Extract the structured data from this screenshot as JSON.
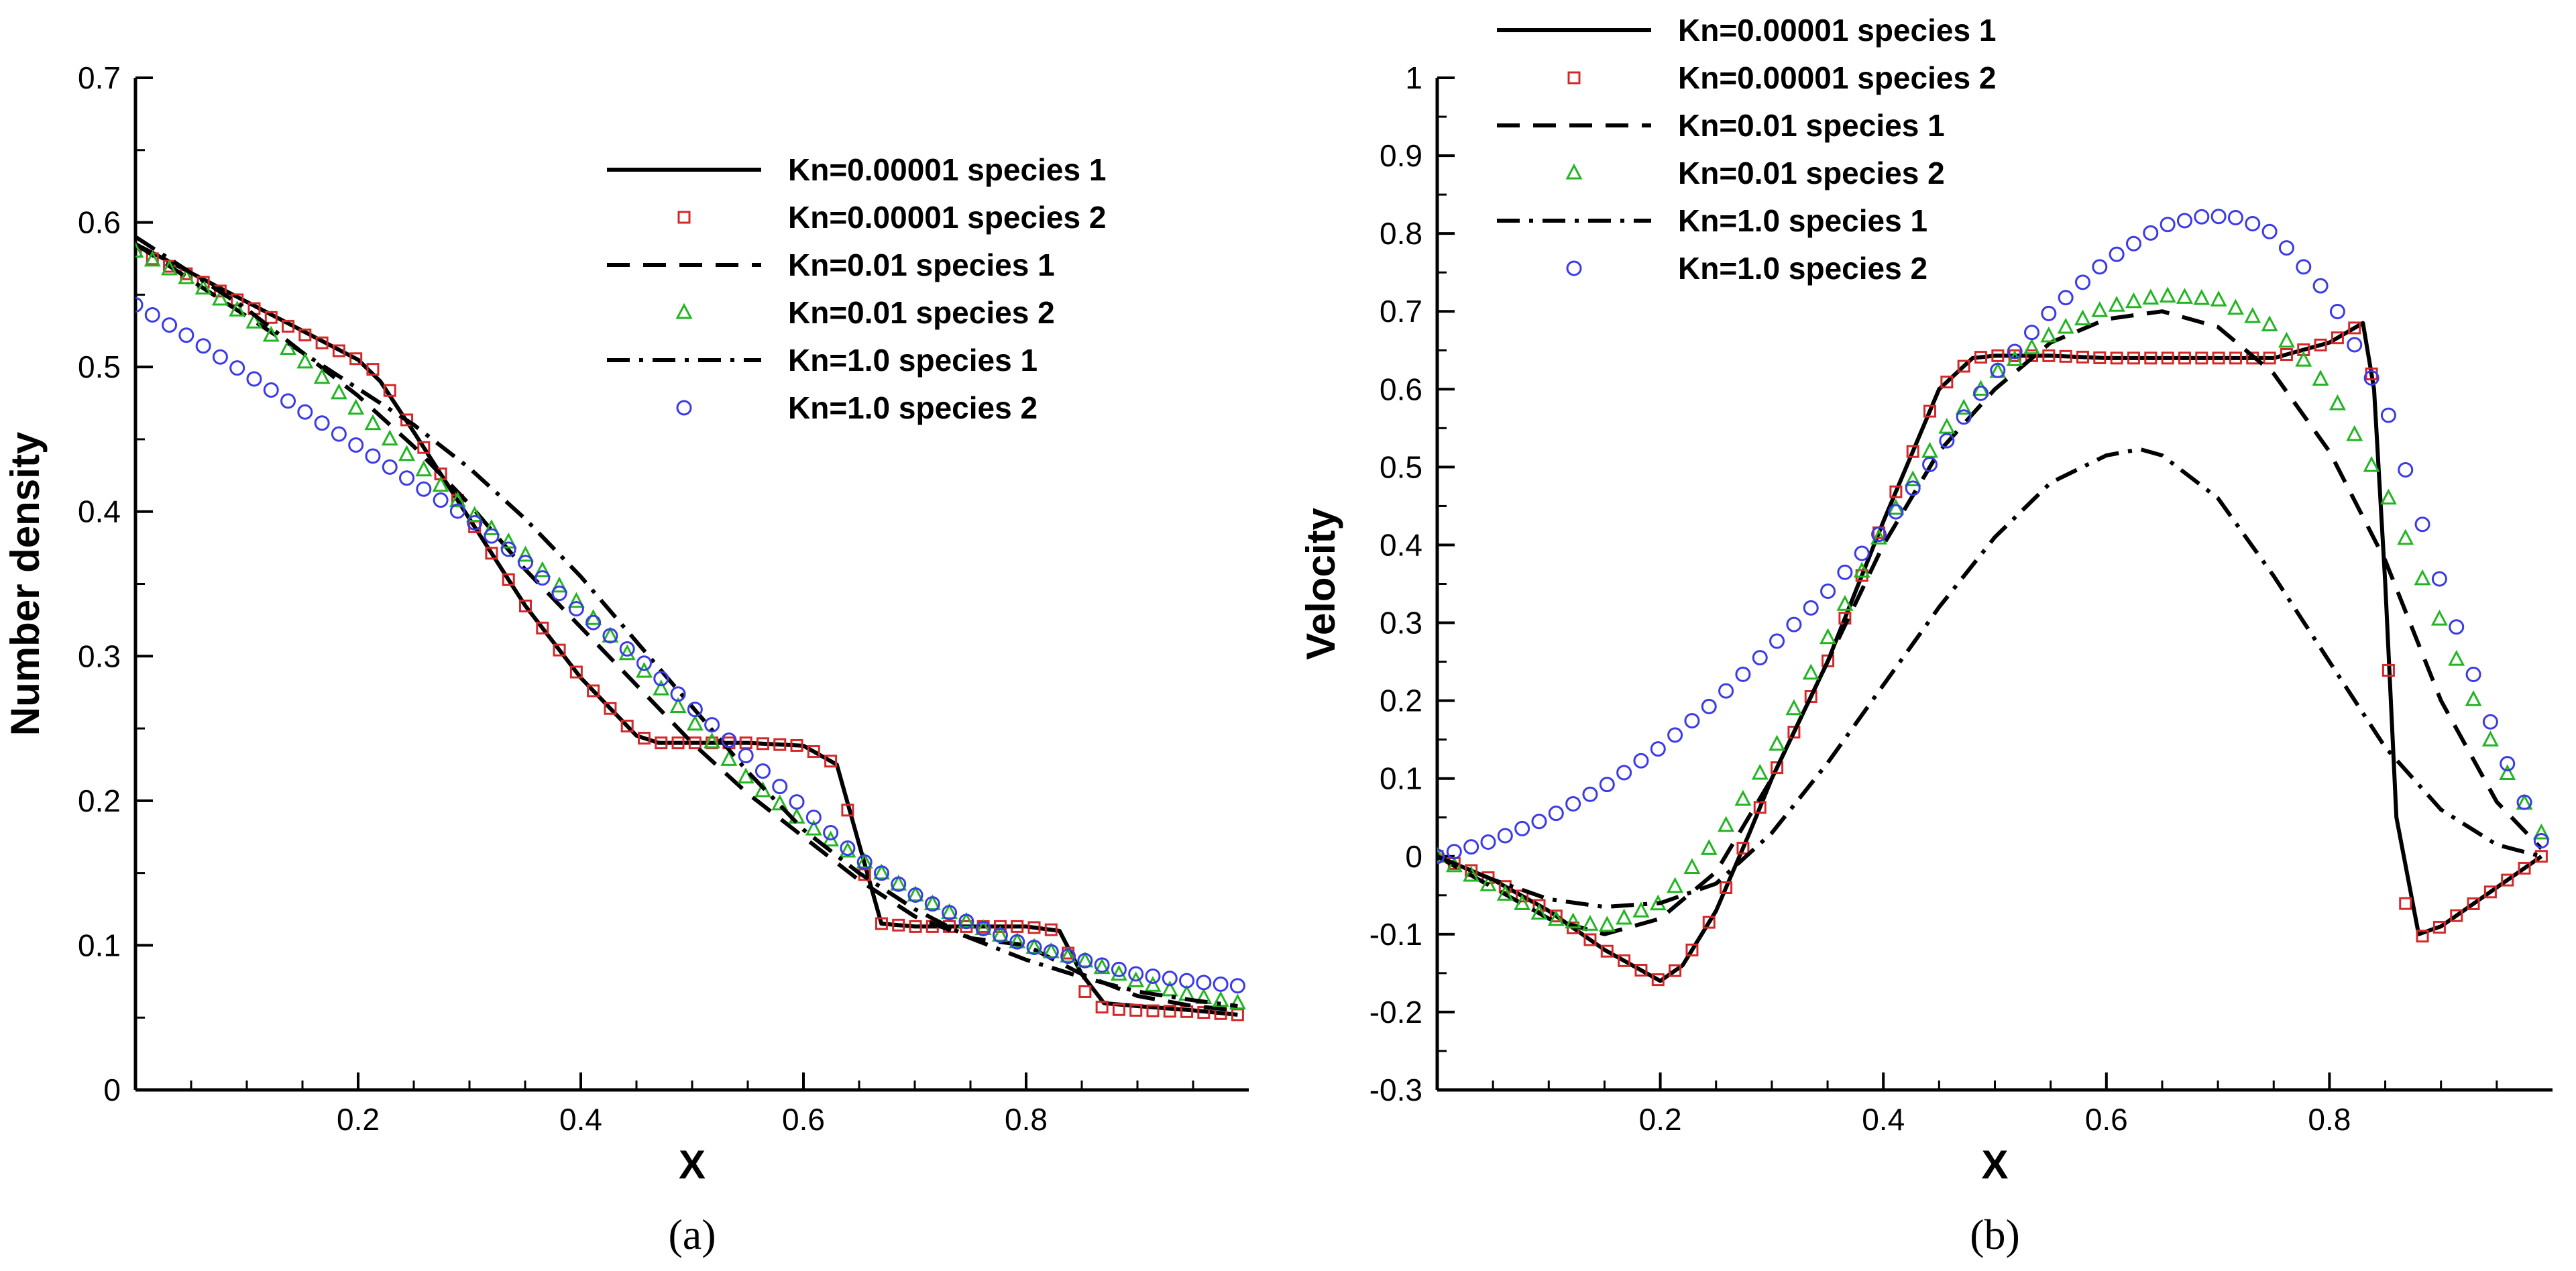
{
  "colors": {
    "red": "#d62728",
    "green": "#22b522",
    "blue": "#3a3ae8",
    "black": "#000000"
  },
  "chart_data": [
    {
      "type": "line",
      "caption": "(a)",
      "xlabel": "X",
      "ylabel": "Number density",
      "xlim": [
        0,
        1
      ],
      "ylim": [
        0,
        0.7
      ],
      "x_ticks": [
        0.2,
        0.4,
        0.6,
        0.8
      ],
      "x_tick_labels": [
        "0.2",
        "0.4",
        "0.6",
        "0.8"
      ],
      "y_ticks": [
        0,
        0.1,
        0.2,
        0.3,
        0.4,
        0.5,
        0.6,
        0.7
      ],
      "y_tick_labels": [
        "0",
        "0.1",
        "0.2",
        "0.3",
        "0.4",
        "0.5",
        "0.6",
        "0.7"
      ],
      "legend_position": "top-right",
      "series": [
        {
          "name": "Kn=0.00001 species 1",
          "style": "solid",
          "x": [
            0,
            0.05,
            0.1,
            0.15,
            0.2,
            0.22,
            0.25,
            0.3,
            0.35,
            0.4,
            0.45,
            0.47,
            0.5,
            0.55,
            0.6,
            0.63,
            0.65,
            0.67,
            0.7,
            0.75,
            0.8,
            0.83,
            0.85,
            0.87,
            0.9,
            0.95,
            0.99
          ],
          "y": [
            0.585,
            0.565,
            0.545,
            0.525,
            0.505,
            0.49,
            0.455,
            0.395,
            0.335,
            0.285,
            0.245,
            0.24,
            0.24,
            0.24,
            0.238,
            0.225,
            0.17,
            0.115,
            0.113,
            0.113,
            0.113,
            0.11,
            0.08,
            0.06,
            0.058,
            0.055,
            0.052
          ]
        },
        {
          "name": "Kn=0.00001 species 2",
          "style": "square",
          "x": [
            0,
            0.05,
            0.1,
            0.15,
            0.2,
            0.22,
            0.25,
            0.3,
            0.35,
            0.4,
            0.45,
            0.47,
            0.5,
            0.55,
            0.6,
            0.63,
            0.65,
            0.67,
            0.7,
            0.75,
            0.8,
            0.83,
            0.85,
            0.87,
            0.9,
            0.95,
            0.99
          ],
          "y": [
            0.58,
            0.563,
            0.543,
            0.523,
            0.505,
            0.495,
            0.455,
            0.395,
            0.335,
            0.285,
            0.245,
            0.24,
            0.24,
            0.24,
            0.238,
            0.225,
            0.16,
            0.115,
            0.113,
            0.113,
            0.113,
            0.11,
            0.07,
            0.056,
            0.055,
            0.054,
            0.052
          ]
        },
        {
          "name": "Kn=0.01 species 1",
          "style": "dash",
          "x": [
            0,
            0.05,
            0.1,
            0.15,
            0.2,
            0.25,
            0.3,
            0.35,
            0.4,
            0.45,
            0.5,
            0.55,
            0.6,
            0.65,
            0.7,
            0.75,
            0.8,
            0.85,
            0.9,
            0.95,
            0.99
          ],
          "y": [
            0.585,
            0.56,
            0.535,
            0.51,
            0.48,
            0.445,
            0.405,
            0.36,
            0.32,
            0.28,
            0.24,
            0.205,
            0.175,
            0.145,
            0.12,
            0.105,
            0.1,
            0.08,
            0.065,
            0.058,
            0.055
          ]
        },
        {
          "name": "Kn=0.01 species 2",
          "style": "triangle",
          "x": [
            0,
            0.05,
            0.1,
            0.15,
            0.2,
            0.25,
            0.3,
            0.35,
            0.4,
            0.45,
            0.5,
            0.55,
            0.6,
            0.65,
            0.7,
            0.75,
            0.8,
            0.85,
            0.9,
            0.95,
            0.99
          ],
          "y": [
            0.58,
            0.56,
            0.535,
            0.505,
            0.47,
            0.435,
            0.4,
            0.37,
            0.335,
            0.295,
            0.255,
            0.215,
            0.185,
            0.16,
            0.135,
            0.115,
            0.1,
            0.09,
            0.075,
            0.065,
            0.06
          ]
        },
        {
          "name": "Kn=1.0 species 1",
          "style": "dashdot",
          "x": [
            0,
            0.05,
            0.1,
            0.15,
            0.2,
            0.25,
            0.3,
            0.35,
            0.4,
            0.45,
            0.5,
            0.55,
            0.6,
            0.65,
            0.7,
            0.75,
            0.8,
            0.85,
            0.9,
            0.95,
            0.99
          ],
          "y": [
            0.59,
            0.565,
            0.54,
            0.51,
            0.485,
            0.46,
            0.43,
            0.395,
            0.355,
            0.31,
            0.265,
            0.22,
            0.18,
            0.15,
            0.125,
            0.105,
            0.09,
            0.078,
            0.068,
            0.062,
            0.058
          ]
        },
        {
          "name": "Kn=1.0 species 2",
          "style": "circle",
          "x": [
            0,
            0.05,
            0.1,
            0.15,
            0.2,
            0.25,
            0.3,
            0.35,
            0.4,
            0.45,
            0.5,
            0.55,
            0.6,
            0.65,
            0.7,
            0.75,
            0.8,
            0.85,
            0.9,
            0.95,
            0.99
          ],
          "y": [
            0.543,
            0.52,
            0.495,
            0.47,
            0.445,
            0.42,
            0.395,
            0.365,
            0.33,
            0.3,
            0.265,
            0.23,
            0.195,
            0.16,
            0.135,
            0.115,
            0.1,
            0.09,
            0.08,
            0.075,
            0.072
          ]
        }
      ]
    },
    {
      "type": "line",
      "caption": "(b)",
      "xlabel": "X",
      "ylabel": "Velocity",
      "xlim": [
        0,
        1
      ],
      "ylim": [
        -0.3,
        1
      ],
      "x_ticks": [
        0.2,
        0.4,
        0.6,
        0.8
      ],
      "x_tick_labels": [
        "0.2",
        "0.4",
        "0.6",
        "0.8"
      ],
      "y_ticks": [
        -0.3,
        -0.2,
        -0.1,
        0,
        0.1,
        0.2,
        0.3,
        0.4,
        0.5,
        0.6,
        0.7,
        0.8,
        0.9,
        1
      ],
      "y_tick_labels": [
        "-0.3",
        "-0.2",
        "-0.1",
        "0",
        "0.1",
        "0.2",
        "0.3",
        "0.4",
        "0.5",
        "0.6",
        "0.7",
        "0.8",
        "0.9",
        "1"
      ],
      "legend_position": "top-left",
      "series": [
        {
          "name": "Kn=0.00001 species 1",
          "style": "solid",
          "x": [
            0,
            0.05,
            0.1,
            0.15,
            0.2,
            0.22,
            0.25,
            0.28,
            0.3,
            0.35,
            0.4,
            0.45,
            0.48,
            0.5,
            0.55,
            0.6,
            0.65,
            0.7,
            0.75,
            0.8,
            0.83,
            0.84,
            0.85,
            0.86,
            0.88,
            0.9,
            0.95,
            0.99
          ],
          "y": [
            0,
            -0.03,
            -0.07,
            -0.12,
            -0.16,
            -0.14,
            -0.07,
            0.03,
            0.1,
            0.25,
            0.43,
            0.6,
            0.64,
            0.643,
            0.643,
            0.64,
            0.64,
            0.64,
            0.64,
            0.66,
            0.685,
            0.6,
            0.35,
            0.05,
            -0.1,
            -0.09,
            -0.04,
            0
          ]
        },
        {
          "name": "Kn=0.00001 species 2",
          "style": "square",
          "x": [
            0,
            0.05,
            0.1,
            0.15,
            0.2,
            0.22,
            0.25,
            0.28,
            0.3,
            0.35,
            0.4,
            0.45,
            0.48,
            0.5,
            0.55,
            0.6,
            0.65,
            0.7,
            0.75,
            0.8,
            0.83,
            0.84,
            0.85,
            0.86,
            0.88,
            0.9,
            0.95,
            0.99
          ],
          "y": [
            0,
            -0.03,
            -0.07,
            -0.12,
            -0.16,
            -0.14,
            -0.07,
            0.03,
            0.1,
            0.25,
            0.43,
            0.6,
            0.64,
            0.643,
            0.643,
            0.64,
            0.64,
            0.64,
            0.64,
            0.66,
            0.685,
            0.6,
            0.35,
            -0.03,
            -0.105,
            -0.09,
            -0.04,
            0
          ]
        },
        {
          "name": "Kn=0.01 species 1",
          "style": "dash",
          "x": [
            0,
            0.05,
            0.1,
            0.15,
            0.2,
            0.25,
            0.3,
            0.35,
            0.4,
            0.45,
            0.5,
            0.55,
            0.6,
            0.65,
            0.7,
            0.75,
            0.8,
            0.85,
            0.9,
            0.95,
            0.99
          ],
          "y": [
            0,
            -0.04,
            -0.08,
            -0.1,
            -0.08,
            -0.02,
            0.1,
            0.25,
            0.4,
            0.52,
            0.6,
            0.66,
            0.69,
            0.7,
            0.68,
            0.62,
            0.52,
            0.38,
            0.2,
            0.07,
            0.01
          ]
        },
        {
          "name": "Kn=0.01 species 2",
          "style": "triangle",
          "x": [
            0,
            0.05,
            0.1,
            0.15,
            0.2,
            0.25,
            0.3,
            0.35,
            0.4,
            0.45,
            0.5,
            0.55,
            0.6,
            0.65,
            0.7,
            0.75,
            0.8,
            0.85,
            0.9,
            0.95,
            0.99
          ],
          "y": [
            0,
            -0.04,
            -0.08,
            -0.09,
            -0.06,
            0.02,
            0.13,
            0.28,
            0.42,
            0.54,
            0.62,
            0.67,
            0.705,
            0.72,
            0.715,
            0.68,
            0.6,
            0.47,
            0.3,
            0.13,
            0.03
          ]
        },
        {
          "name": "Kn=1.0 species 1",
          "style": "dashdot",
          "x": [
            0,
            0.05,
            0.1,
            0.15,
            0.2,
            0.25,
            0.3,
            0.35,
            0.4,
            0.45,
            0.5,
            0.55,
            0.6,
            0.63,
            0.65,
            0.7,
            0.75,
            0.8,
            0.85,
            0.9,
            0.95,
            0.99
          ],
          "y": [
            0,
            -0.03,
            -0.055,
            -0.065,
            -0.06,
            -0.035,
            0.03,
            0.12,
            0.22,
            0.32,
            0.41,
            0.48,
            0.515,
            0.523,
            0.515,
            0.46,
            0.36,
            0.25,
            0.14,
            0.06,
            0.015,
            0
          ]
        },
        {
          "name": "Kn=1.0 species 2",
          "style": "circle",
          "x": [
            0,
            0.05,
            0.1,
            0.15,
            0.2,
            0.25,
            0.3,
            0.35,
            0.4,
            0.45,
            0.5,
            0.55,
            0.6,
            0.65,
            0.69,
            0.72,
            0.75,
            0.8,
            0.85,
            0.9,
            0.95,
            0.99
          ],
          "y": [
            0,
            0.02,
            0.05,
            0.09,
            0.14,
            0.2,
            0.27,
            0.34,
            0.42,
            0.52,
            0.62,
            0.7,
            0.765,
            0.81,
            0.823,
            0.82,
            0.8,
            0.72,
            0.58,
            0.35,
            0.15,
            0.02
          ]
        }
      ]
    }
  ]
}
